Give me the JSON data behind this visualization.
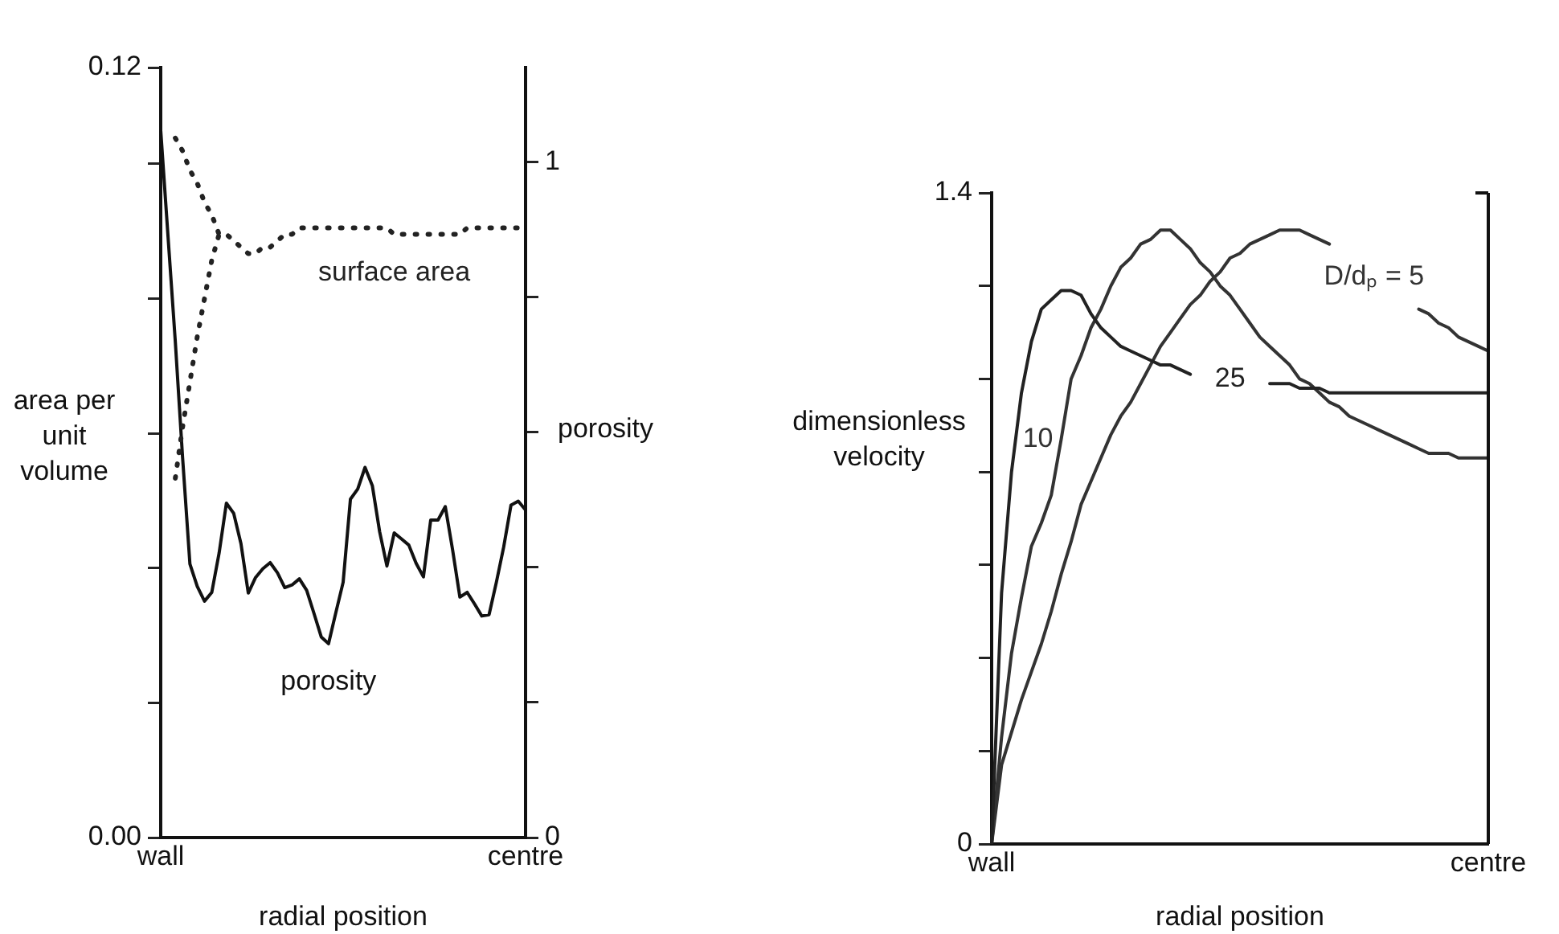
{
  "chart_data": [
    {
      "type": "line",
      "xlabel": "radial position",
      "ylabel": "area per unit volume",
      "y2label": "porosity",
      "categories": [
        "wall",
        null,
        null,
        null,
        null,
        null,
        null,
        null,
        null,
        null,
        null,
        null,
        null,
        null,
        null,
        null,
        null,
        null,
        null,
        null,
        null,
        null,
        null,
        null,
        null,
        null,
        null,
        null,
        null,
        null,
        null,
        null,
        null,
        null,
        null,
        null,
        null,
        null,
        null,
        null,
        null,
        null,
        null,
        null,
        null,
        null,
        null,
        null,
        null,
        null,
        "centre"
      ],
      "ylim": [
        0,
        0.12
      ],
      "yticks": [
        {
          "value": 0,
          "label": "0.00"
        },
        {
          "value": 0.021,
          "label": null
        },
        {
          "value": 0.042,
          "label": null
        },
        {
          "value": 0.063,
          "label": null
        },
        {
          "value": 0.084,
          "label": null
        },
        {
          "value": 0.105,
          "label": null
        },
        {
          "value": 0.12,
          "label": "0.12"
        }
      ],
      "y2lim": [
        0,
        1.14
      ],
      "y2ticks": [
        0,
        {
          "value": 0.2,
          "label": null
        },
        {
          "value": 0.4,
          "label": null
        },
        {
          "value": 0.6,
          "label": null
        },
        {
          "value": 0.8,
          "label": null
        },
        1
      ],
      "grid": false,
      "legend": false,
      "marker": "none",
      "series": [
        {
          "name": "surface area",
          "color": "#222222",
          "line_style": "dotted",
          "values": [
            null,
            null,
            0.109,
            0.107,
            0.104,
            0.102,
            0.099,
            0.097,
            0.094,
            0.094,
            0.093,
            0.092,
            0.091,
            0.091,
            0.092,
            0.092,
            0.093,
            0.094,
            0.094,
            0.095,
            0.095,
            0.095,
            0.095,
            0.095,
            0.095,
            0.095,
            0.095,
            0.095,
            0.095,
            0.095,
            0.095,
            0.095,
            0.094,
            0.094,
            0.094,
            0.094,
            0.094,
            0.094,
            0.094,
            0.094,
            0.094,
            0.094,
            0.095,
            0.095,
            0.095,
            0.095,
            0.095,
            0.095,
            0.095,
            0.095,
            0.095
          ]
        },
        {
          "color": "#222222",
          "line_style": "dotted",
          "values": [
            null,
            null,
            0.056,
            0.064,
            0.071,
            0.078,
            0.084,
            0.09,
            0.094,
            null,
            null,
            null,
            null,
            null,
            null,
            null,
            null,
            null,
            null,
            null,
            null,
            null,
            null,
            null,
            null,
            null,
            null,
            null,
            null,
            null,
            null,
            null,
            null,
            null,
            null,
            null,
            null,
            null,
            null,
            null,
            null,
            null,
            null,
            null,
            null,
            null,
            null,
            null,
            null,
            null,
            null
          ]
        },
        {
          "name": "porosity",
          "color": "#111111",
          "axis": "y2",
          "line_style": "solid",
          "values": [
            1.047,
            0.89,
            0.734,
            0.562,
            0.405,
            0.372,
            0.35,
            0.363,
            0.421,
            0.495,
            0.48,
            0.435,
            0.362,
            0.385,
            0.398,
            0.407,
            0.392,
            0.37,
            0.374,
            0.383,
            0.366,
            0.332,
            0.297,
            0.287,
            0.333,
            0.378,
            0.501,
            0.516,
            0.548,
            0.521,
            0.453,
            0.402,
            0.451,
            0.442,
            0.433,
            0.406,
            0.386,
            0.47,
            0.47,
            0.49,
            0.426,
            0.356,
            0.363,
            0.346,
            0.328,
            0.33,
            0.378,
            0.43,
            0.492,
            0.498,
            0.485
          ]
        }
      ]
    },
    {
      "type": "line",
      "xlabel": "radial position",
      "ylabel": "dimensionless velocity",
      "categories": [
        "wall",
        null,
        null,
        null,
        null,
        null,
        null,
        null,
        null,
        null,
        null,
        null,
        null,
        null,
        null,
        null,
        null,
        null,
        null,
        null,
        null,
        null,
        null,
        null,
        null,
        null,
        null,
        null,
        null,
        null,
        null,
        null,
        null,
        null,
        null,
        null,
        null,
        null,
        null,
        null,
        null,
        null,
        null,
        null,
        null,
        null,
        null,
        null,
        null,
        null,
        "centre"
      ],
      "ylim": [
        0,
        1.4
      ],
      "yticks": [
        0,
        {
          "value": 0.2,
          "label": null
        },
        {
          "value": 0.4,
          "label": null
        },
        {
          "value": 0.6,
          "label": null
        },
        {
          "value": 0.8,
          "label": null
        },
        {
          "value": 1,
          "label": null
        },
        {
          "value": 1.2,
          "label": null
        },
        1.4
      ],
      "grid": false,
      "legend": false,
      "marker": "none",
      "series": [
        {
          "name": "25",
          "color": "#222222",
          "line_style": "solid",
          "values": [
            0,
            0.54,
            0.8,
            0.97,
            1.08,
            1.15,
            1.17,
            1.19,
            1.19,
            1.18,
            1.14,
            1.11,
            1.09,
            1.07,
            1.06,
            1.05,
            1.04,
            1.03,
            1.03,
            1.02,
            1.01,
            null,
            null,
            null,
            null,
            null,
            null,
            null,
            0.99,
            0.99,
            0.99,
            0.98,
            0.98,
            0.98,
            0.97,
            0.97,
            0.97,
            0.97,
            0.97,
            0.97,
            0.97,
            0.97,
            0.97,
            0.97,
            0.97,
            0.97,
            0.97,
            0.97,
            0.97,
            0.97,
            0.97
          ]
        },
        {
          "name": "10",
          "color": "#333333",
          "line_style": "solid",
          "values": [
            0,
            0.23,
            0.41,
            0.53,
            0.64,
            0.69,
            0.75,
            0.87,
            1.0,
            1.05,
            1.11,
            1.15,
            1.2,
            1.24,
            1.26,
            1.29,
            1.3,
            1.32,
            1.32,
            1.3,
            1.28,
            1.25,
            1.23,
            1.2,
            1.18,
            1.15,
            1.12,
            1.09,
            1.07,
            1.05,
            1.03,
            1.0,
            0.99,
            0.97,
            0.95,
            0.94,
            0.92,
            0.91,
            0.9,
            0.89,
            0.88,
            0.87,
            0.86,
            0.85,
            0.84,
            0.84,
            0.84,
            0.83,
            0.83,
            0.83,
            0.83
          ]
        },
        {
          "name": "D/dₚ = 5",
          "color": "#333333",
          "line_style": "solid",
          "values": [
            0,
            0.17,
            0.24,
            0.31,
            0.37,
            0.43,
            0.5,
            0.58,
            0.65,
            0.73,
            0.78,
            0.83,
            0.88,
            0.92,
            0.95,
            0.99,
            1.03,
            1.07,
            1.1,
            1.13,
            1.16,
            1.18,
            1.21,
            1.23,
            1.26,
            1.27,
            1.29,
            1.3,
            1.31,
            1.32,
            1.32,
            1.32,
            1.31,
            1.3,
            1.29,
            null,
            null,
            null,
            null,
            null,
            null,
            null,
            null,
            1.15,
            1.14,
            1.12,
            1.11,
            1.09,
            1.08,
            1.07,
            1.06
          ]
        }
      ]
    }
  ]
}
